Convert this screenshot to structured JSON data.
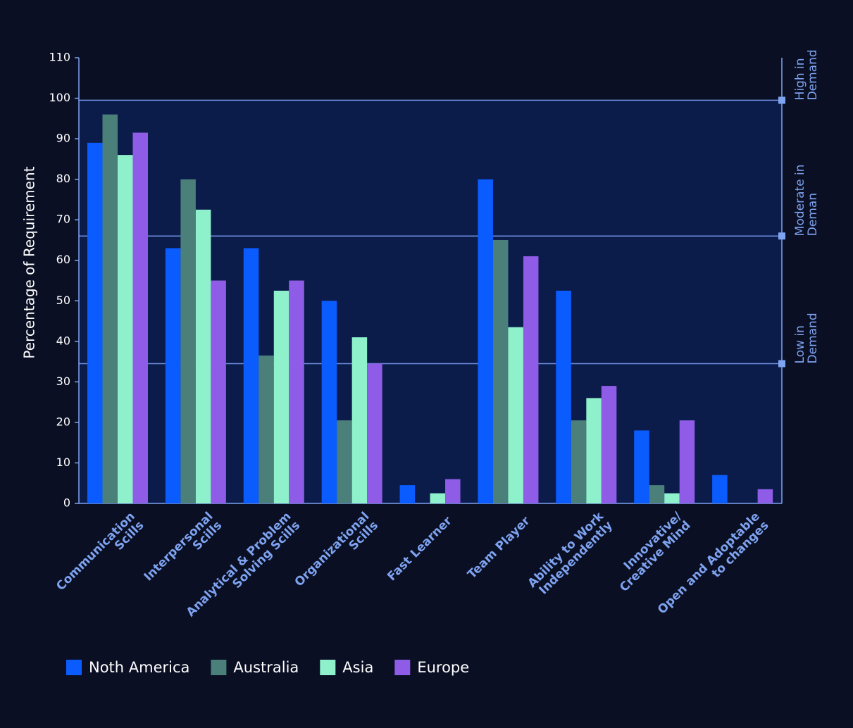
{
  "chart_data": {
    "type": "bar",
    "y_label": "Percentage of Requirement",
    "categories": [
      [
        "Communication",
        "Scills"
      ],
      [
        "Interpersonal",
        "Scills"
      ],
      [
        "Analytical & Problem",
        "Solving Scills"
      ],
      [
        "Organizational",
        "Scills"
      ],
      [
        "Fast Learner"
      ],
      [
        "Team Player"
      ],
      [
        "Ability to Work",
        "Independently"
      ],
      [
        "Innovative/",
        "Creative Mind"
      ],
      [
        "Open and Adoptable",
        "to changes"
      ]
    ],
    "series": [
      {
        "name": "Noth America",
        "color": "#0a5cff",
        "values": [
          89,
          63,
          63,
          50,
          4.5,
          80,
          52.5,
          18,
          7
        ]
      },
      {
        "name": "Australia",
        "color": "#4a7f7a",
        "values": [
          96,
          80,
          36.5,
          20.5,
          0,
          65,
          20.5,
          4.5,
          0
        ]
      },
      {
        "name": "Asia",
        "color": "#8ff0cc",
        "values": [
          86,
          72.5,
          52.5,
          41,
          2.5,
          43.5,
          26,
          2.5,
          0
        ]
      },
      {
        "name": "Europe",
        "color": "#8e5ce6",
        "values": [
          91.5,
          55,
          55,
          34.5,
          6,
          61,
          29,
          20.5,
          3.5
        ]
      }
    ],
    "ylim": [
      0,
      110
    ],
    "yticks": [
      0,
      10,
      20,
      30,
      40,
      50,
      60,
      70,
      80,
      90,
      100,
      110
    ],
    "demand_levels": [
      {
        "value": 99.5,
        "label": [
          "High in",
          "Demand"
        ]
      },
      {
        "value": 66,
        "label": [
          "Moderate in",
          "Deman"
        ]
      },
      {
        "value": 34.5,
        "label": [
          "Low in",
          "Demand"
        ]
      }
    ]
  }
}
